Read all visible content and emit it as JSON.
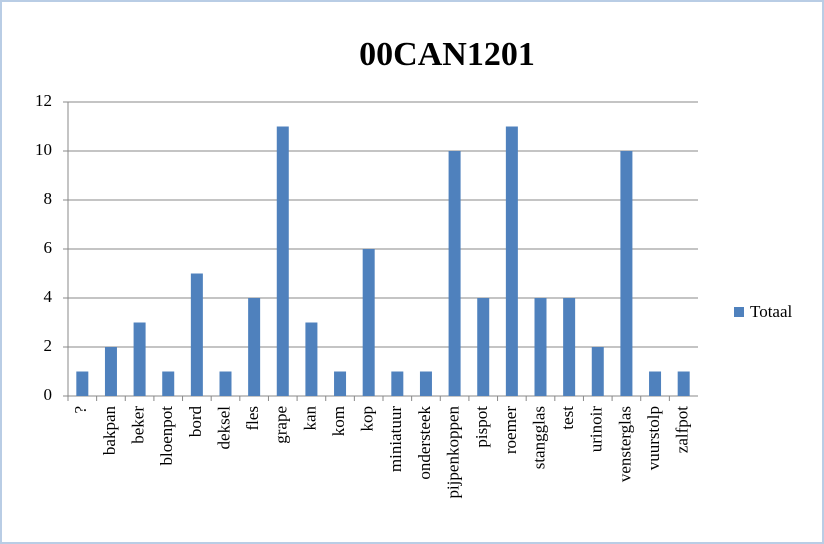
{
  "chart_data": {
    "type": "bar",
    "title": "00CAN1201",
    "categories": [
      "?",
      "bakpan",
      "beker",
      "bloenpot",
      "bord",
      "deksel",
      "fles",
      "grape",
      "kan",
      "kom",
      "kop",
      "miniatuur",
      "ondersteek",
      "pijpenkoppen",
      "pispot",
      "roemer",
      "stangglas",
      "test",
      "urinoir",
      "vensterglas",
      "vuurstolp",
      "zalfpot"
    ],
    "series": [
      {
        "name": "Totaal",
        "color": "#4f81bd",
        "values": [
          1,
          2,
          3,
          1,
          5,
          1,
          4,
          11,
          3,
          1,
          6,
          1,
          1,
          10,
          4,
          11,
          4,
          4,
          2,
          10,
          1,
          1
        ]
      }
    ],
    "ylim": [
      0,
      12
    ],
    "yticks": [
      0,
      2,
      4,
      6,
      8,
      10,
      12
    ],
    "grid": true,
    "legend": "right"
  }
}
